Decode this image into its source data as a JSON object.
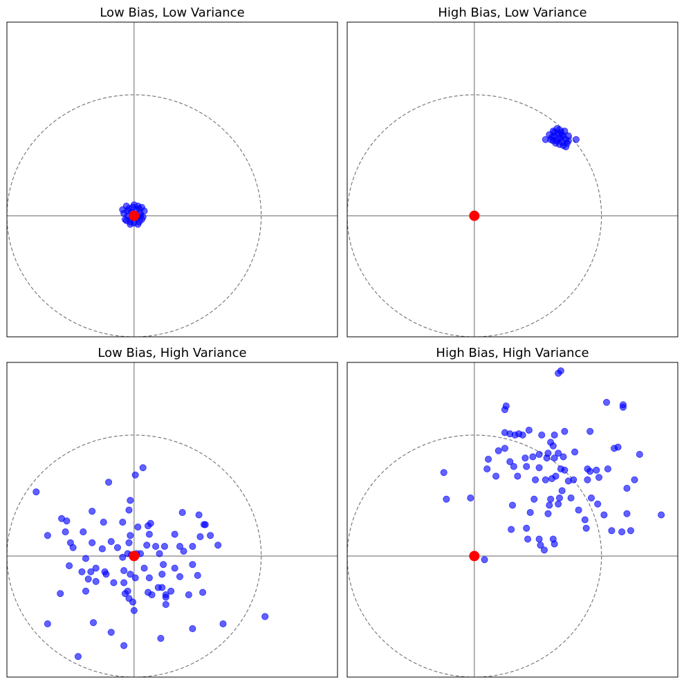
{
  "colors": {
    "axes_line": "#808080",
    "circle": "#707070",
    "points": "#0000ff",
    "target": "#ff0000",
    "frame": "#000000"
  },
  "chart_data": [
    {
      "type": "scatter",
      "title": "Low Bias, Low Variance",
      "xlabel": "",
      "ylabel": "",
      "xlim": [
        -1.0,
        1.6
      ],
      "ylim": [
        -1.0,
        1.6
      ],
      "grid": false,
      "target_point": {
        "x": 0,
        "y": 0
      },
      "reference_circle_radius": 1,
      "points": [
        {
          "x": -0.06,
          "y": 0.08
        },
        {
          "x": 0.04,
          "y": 0.06
        },
        {
          "x": -0.02,
          "y": 0.03
        },
        {
          "x": 0.05,
          "y": 0.02
        },
        {
          "x": -0.05,
          "y": 0.0
        },
        {
          "x": 0.02,
          "y": -0.02
        },
        {
          "x": -0.03,
          "y": -0.05
        },
        {
          "x": 0.06,
          "y": -0.03
        },
        {
          "x": 0.0,
          "y": -0.06
        },
        {
          "x": -0.08,
          "y": 0.02
        },
        {
          "x": 0.08,
          "y": 0.04
        },
        {
          "x": 0.03,
          "y": 0.08
        },
        {
          "x": -0.04,
          "y": 0.06
        },
        {
          "x": -0.01,
          "y": 0.07
        },
        {
          "x": 0.07,
          "y": -0.01
        },
        {
          "x": -0.07,
          "y": -0.03
        },
        {
          "x": 0.01,
          "y": 0.01
        },
        {
          "x": -0.02,
          "y": -0.02
        },
        {
          "x": 0.04,
          "y": -0.05
        },
        {
          "x": -0.05,
          "y": 0.04
        },
        {
          "x": 0.06,
          "y": 0.07
        },
        {
          "x": -0.03,
          "y": -0.07
        },
        {
          "x": 0.02,
          "y": 0.05
        },
        {
          "x": -0.06,
          "y": -0.04
        },
        {
          "x": 0.05,
          "y": 0.0
        },
        {
          "x": -0.09,
          "y": 0.05
        },
        {
          "x": 0.0,
          "y": 0.09
        },
        {
          "x": 0.03,
          "y": -0.07
        }
      ]
    },
    {
      "type": "scatter",
      "title": "High Bias, Low Variance",
      "xlabel": "",
      "ylabel": "",
      "xlim": [
        -1.0,
        1.6
      ],
      "ylim": [
        -1.0,
        1.6
      ],
      "grid": false,
      "target_point": {
        "x": 0,
        "y": 0
      },
      "reference_circle_radius": 1,
      "points": [
        {
          "x": 0.62,
          "y": 0.7
        },
        {
          "x": 0.65,
          "y": 0.72
        },
        {
          "x": 0.68,
          "y": 0.69
        },
        {
          "x": 0.7,
          "y": 0.66
        },
        {
          "x": 0.66,
          "y": 0.64
        },
        {
          "x": 0.63,
          "y": 0.66
        },
        {
          "x": 0.6,
          "y": 0.63
        },
        {
          "x": 0.69,
          "y": 0.61
        },
        {
          "x": 0.72,
          "y": 0.63
        },
        {
          "x": 0.74,
          "y": 0.66
        },
        {
          "x": 0.67,
          "y": 0.59
        },
        {
          "x": 0.64,
          "y": 0.6
        },
        {
          "x": 0.71,
          "y": 0.7
        },
        {
          "x": 0.59,
          "y": 0.67
        },
        {
          "x": 0.66,
          "y": 0.68
        },
        {
          "x": 0.62,
          "y": 0.62
        },
        {
          "x": 0.7,
          "y": 0.58
        },
        {
          "x": 0.56,
          "y": 0.63
        },
        {
          "x": 0.8,
          "y": 0.63
        },
        {
          "x": 0.73,
          "y": 0.6
        },
        {
          "x": 0.68,
          "y": 0.64
        },
        {
          "x": 0.65,
          "y": 0.62
        },
        {
          "x": 0.61,
          "y": 0.65
        },
        {
          "x": 0.72,
          "y": 0.57
        },
        {
          "x": 0.63,
          "y": 0.69
        },
        {
          "x": 0.67,
          "y": 0.71
        },
        {
          "x": 0.69,
          "y": 0.67
        },
        {
          "x": 0.74,
          "y": 0.62
        }
      ]
    },
    {
      "type": "scatter",
      "title": "Low Bias, High Variance",
      "xlabel": "",
      "ylabel": "",
      "xlim": [
        -1.0,
        1.6
      ],
      "ylim": [
        -1.0,
        1.6
      ],
      "grid": false,
      "target_point": {
        "x": 0,
        "y": 0
      },
      "reference_circle_radius": 1,
      "points": [
        {
          "x": -0.77,
          "y": 0.53
        },
        {
          "x": 0.07,
          "y": 0.73
        },
        {
          "x": 0.01,
          "y": 0.67
        },
        {
          "x": -0.2,
          "y": 0.61
        },
        {
          "x": -0.03,
          "y": 0.46
        },
        {
          "x": -0.04,
          "y": 0.38
        },
        {
          "x": -0.33,
          "y": 0.37
        },
        {
          "x": 0.38,
          "y": 0.36
        },
        {
          "x": -0.57,
          "y": 0.31
        },
        {
          "x": -0.53,
          "y": 0.29
        },
        {
          "x": -0.24,
          "y": 0.28
        },
        {
          "x": -0.09,
          "y": 0.28
        },
        {
          "x": 0.03,
          "y": 0.24
        },
        {
          "x": 0.11,
          "y": 0.25
        },
        {
          "x": 0.13,
          "y": 0.27
        },
        {
          "x": 0.51,
          "y": 0.34
        },
        {
          "x": 0.55,
          "y": 0.26
        },
        {
          "x": 0.56,
          "y": 0.26
        },
        {
          "x": -0.54,
          "y": 0.2
        },
        {
          "x": -0.4,
          "y": 0.2
        },
        {
          "x": -0.68,
          "y": 0.17
        },
        {
          "x": -0.03,
          "y": 0.17
        },
        {
          "x": 0.12,
          "y": 0.18
        },
        {
          "x": 0.32,
          "y": 0.18
        },
        {
          "x": 0.52,
          "y": 0.16
        },
        {
          "x": 0.6,
          "y": 0.17
        },
        {
          "x": -0.5,
          "y": 0.11
        },
        {
          "x": -0.33,
          "y": 0.11
        },
        {
          "x": -0.18,
          "y": 0.12
        },
        {
          "x": -0.04,
          "y": 0.11
        },
        {
          "x": 0.17,
          "y": 0.08
        },
        {
          "x": 0.24,
          "y": 0.08
        },
        {
          "x": 0.36,
          "y": 0.08
        },
        {
          "x": 0.66,
          "y": 0.09
        },
        {
          "x": -0.48,
          "y": 0.07
        },
        {
          "x": -0.25,
          "y": 0.06
        },
        {
          "x": -0.13,
          "y": 0.07
        },
        {
          "x": 0.1,
          "y": 0.09
        },
        {
          "x": 0.2,
          "y": 0.02
        },
        {
          "x": 0.39,
          "y": 0.04
        },
        {
          "x": 0.46,
          "y": 0.08
        },
        {
          "x": -0.05,
          "y": 0.02
        },
        {
          "x": -0.02,
          "y": 0.01
        },
        {
          "x": 0.02,
          "y": 0.02
        },
        {
          "x": 0.05,
          "y": 0.02
        },
        {
          "x": -0.09,
          "y": -0.01
        },
        {
          "x": -0.38,
          "y": -0.02
        },
        {
          "x": -0.51,
          "y": -0.08
        },
        {
          "x": -0.3,
          "y": -0.1
        },
        {
          "x": -0.23,
          "y": -0.13
        },
        {
          "x": -0.08,
          "y": -0.12
        },
        {
          "x": 0.08,
          "y": -0.1
        },
        {
          "x": 0.23,
          "y": -0.07
        },
        {
          "x": 0.32,
          "y": -0.1
        },
        {
          "x": 0.46,
          "y": -0.07
        },
        {
          "x": -0.41,
          "y": -0.13
        },
        {
          "x": -0.34,
          "y": -0.13
        },
        {
          "x": -0.22,
          "y": -0.15
        },
        {
          "x": -0.03,
          "y": -0.15
        },
        {
          "x": 0.12,
          "y": -0.18
        },
        {
          "x": 0.22,
          "y": -0.15
        },
        {
          "x": -0.36,
          "y": -0.19
        },
        {
          "x": -0.3,
          "y": -0.21
        },
        {
          "x": -0.16,
          "y": -0.22
        },
        {
          "x": -0.08,
          "y": -0.22
        },
        {
          "x": 0.01,
          "y": -0.18
        },
        {
          "x": 0.36,
          "y": -0.17
        },
        {
          "x": 0.5,
          "y": -0.16
        },
        {
          "x": -0.38,
          "y": -0.29
        },
        {
          "x": -0.05,
          "y": -0.29
        },
        {
          "x": 0.19,
          "y": -0.26
        },
        {
          "x": 0.22,
          "y": -0.26
        },
        {
          "x": 0.29,
          "y": -0.29
        },
        {
          "x": 0.43,
          "y": -0.32
        },
        {
          "x": 0.54,
          "y": -0.3
        },
        {
          "x": -0.58,
          "y": -0.31
        },
        {
          "x": -0.07,
          "y": -0.31
        },
        {
          "x": 0.11,
          "y": -0.3
        },
        {
          "x": 0.25,
          "y": -0.32
        },
        {
          "x": -0.04,
          "y": -0.35
        },
        {
          "x": 0.25,
          "y": -0.34
        },
        {
          "x": 0.14,
          "y": -0.32
        },
        {
          "x": -0.01,
          "y": -0.38
        },
        {
          "x": 0.25,
          "y": -0.4
        },
        {
          "x": 0.0,
          "y": -0.45
        },
        {
          "x": 1.03,
          "y": -0.5
        },
        {
          "x": -0.68,
          "y": -0.56
        },
        {
          "x": -0.32,
          "y": -0.55
        },
        {
          "x": 0.7,
          "y": -0.56
        },
        {
          "x": 0.46,
          "y": -0.6
        },
        {
          "x": -0.18,
          "y": -0.63
        },
        {
          "x": 0.21,
          "y": -0.68
        },
        {
          "x": -0.08,
          "y": -0.74
        },
        {
          "x": -0.44,
          "y": -0.83
        }
      ]
    },
    {
      "type": "scatter",
      "title": "High Bias, High Variance",
      "xlabel": "",
      "ylabel": "",
      "xlim": [
        -1.0,
        1.6
      ],
      "ylim": [
        -1.0,
        1.6
      ],
      "grid": false,
      "target_point": {
        "x": 0,
        "y": 0
      },
      "reference_circle_radius": 1,
      "points": [
        {
          "x": 0.68,
          "y": 1.53
        },
        {
          "x": 0.66,
          "y": 1.51
        },
        {
          "x": 1.04,
          "y": 1.27
        },
        {
          "x": 1.17,
          "y": 1.25
        },
        {
          "x": 0.25,
          "y": 1.24
        },
        {
          "x": 1.17,
          "y": 1.23
        },
        {
          "x": 0.24,
          "y": 1.21
        },
        {
          "x": 0.24,
          "y": 1.02
        },
        {
          "x": 0.28,
          "y": 1.01
        },
        {
          "x": 0.35,
          "y": 1.01
        },
        {
          "x": 0.38,
          "y": 1.0
        },
        {
          "x": 0.32,
          "y": 1.0
        },
        {
          "x": 0.43,
          "y": 1.04
        },
        {
          "x": 0.53,
          "y": 1.0
        },
        {
          "x": 0.63,
          "y": 1.0
        },
        {
          "x": 0.71,
          "y": 1.03
        },
        {
          "x": 0.91,
          "y": 1.03
        },
        {
          "x": 0.6,
          "y": 0.94
        },
        {
          "x": 0.62,
          "y": 0.91
        },
        {
          "x": 1.1,
          "y": 0.89
        },
        {
          "x": 1.13,
          "y": 0.9
        },
        {
          "x": 0.19,
          "y": 0.87
        },
        {
          "x": 0.24,
          "y": 0.89
        },
        {
          "x": 0.51,
          "y": 0.84
        },
        {
          "x": 0.58,
          "y": 0.85
        },
        {
          "x": 0.66,
          "y": 0.85
        },
        {
          "x": 0.7,
          "y": 0.82
        },
        {
          "x": 0.79,
          "y": 0.86
        },
        {
          "x": 0.11,
          "y": 0.8
        },
        {
          "x": 0.28,
          "y": 0.78
        },
        {
          "x": 0.4,
          "y": 0.81
        },
        {
          "x": 0.46,
          "y": 0.82
        },
        {
          "x": 0.57,
          "y": 0.81
        },
        {
          "x": 0.63,
          "y": 0.81
        },
        {
          "x": 1.3,
          "y": 0.84
        },
        {
          "x": -0.24,
          "y": 0.69
        },
        {
          "x": 0.1,
          "y": 0.72
        },
        {
          "x": 0.31,
          "y": 0.74
        },
        {
          "x": 0.41,
          "y": 0.74
        },
        {
          "x": 0.51,
          "y": 0.73
        },
        {
          "x": 0.68,
          "y": 0.72
        },
        {
          "x": 0.71,
          "y": 0.71
        },
        {
          "x": 0.91,
          "y": 0.7
        },
        {
          "x": 0.96,
          "y": 0.71
        },
        {
          "x": 1.05,
          "y": 0.72
        },
        {
          "x": 0.89,
          "y": 0.72
        },
        {
          "x": 0.17,
          "y": 0.66
        },
        {
          "x": 0.34,
          "y": 0.66
        },
        {
          "x": 0.48,
          "y": 0.63
        },
        {
          "x": 0.56,
          "y": 0.63
        },
        {
          "x": 0.61,
          "y": 0.64
        },
        {
          "x": 0.64,
          "y": 0.66
        },
        {
          "x": 0.74,
          "y": 0.62
        },
        {
          "x": 0.78,
          "y": 0.63
        },
        {
          "x": 0.89,
          "y": 0.63
        },
        {
          "x": 0.98,
          "y": 0.65
        },
        {
          "x": 1.26,
          "y": 0.63
        },
        {
          "x": 0.69,
          "y": 0.54
        },
        {
          "x": 1.2,
          "y": 0.56
        },
        {
          "x": 0.47,
          "y": 0.47
        },
        {
          "x": 0.6,
          "y": 0.47
        },
        {
          "x": 0.67,
          "y": 0.48
        },
        {
          "x": 0.76,
          "y": 0.48
        },
        {
          "x": 0.92,
          "y": 0.48
        },
        {
          "x": -0.22,
          "y": 0.47
        },
        {
          "x": -0.03,
          "y": 0.48
        },
        {
          "x": 0.3,
          "y": 0.42
        },
        {
          "x": 0.59,
          "y": 0.42
        },
        {
          "x": 0.66,
          "y": 0.43
        },
        {
          "x": 0.97,
          "y": 0.43
        },
        {
          "x": 0.82,
          "y": 0.38
        },
        {
          "x": 0.58,
          "y": 0.35
        },
        {
          "x": 0.44,
          "y": 0.36
        },
        {
          "x": 1.02,
          "y": 0.34
        },
        {
          "x": 1.2,
          "y": 0.35
        },
        {
          "x": 1.47,
          "y": 0.34
        },
        {
          "x": 0.87,
          "y": 0.3
        },
        {
          "x": 0.41,
          "y": 0.23
        },
        {
          "x": 0.29,
          "y": 0.22
        },
        {
          "x": 1.08,
          "y": 0.21
        },
        {
          "x": 1.23,
          "y": 0.21
        },
        {
          "x": 1.16,
          "y": 0.2
        },
        {
          "x": 0.88,
          "y": 0.23
        },
        {
          "x": 0.51,
          "y": 0.14
        },
        {
          "x": 0.42,
          "y": 0.14
        },
        {
          "x": 0.62,
          "y": 0.14
        },
        {
          "x": 0.63,
          "y": 0.1
        },
        {
          "x": 0.52,
          "y": 0.09
        },
        {
          "x": 0.55,
          "y": 0.05
        },
        {
          "x": 0.08,
          "y": -0.03
        }
      ]
    }
  ]
}
